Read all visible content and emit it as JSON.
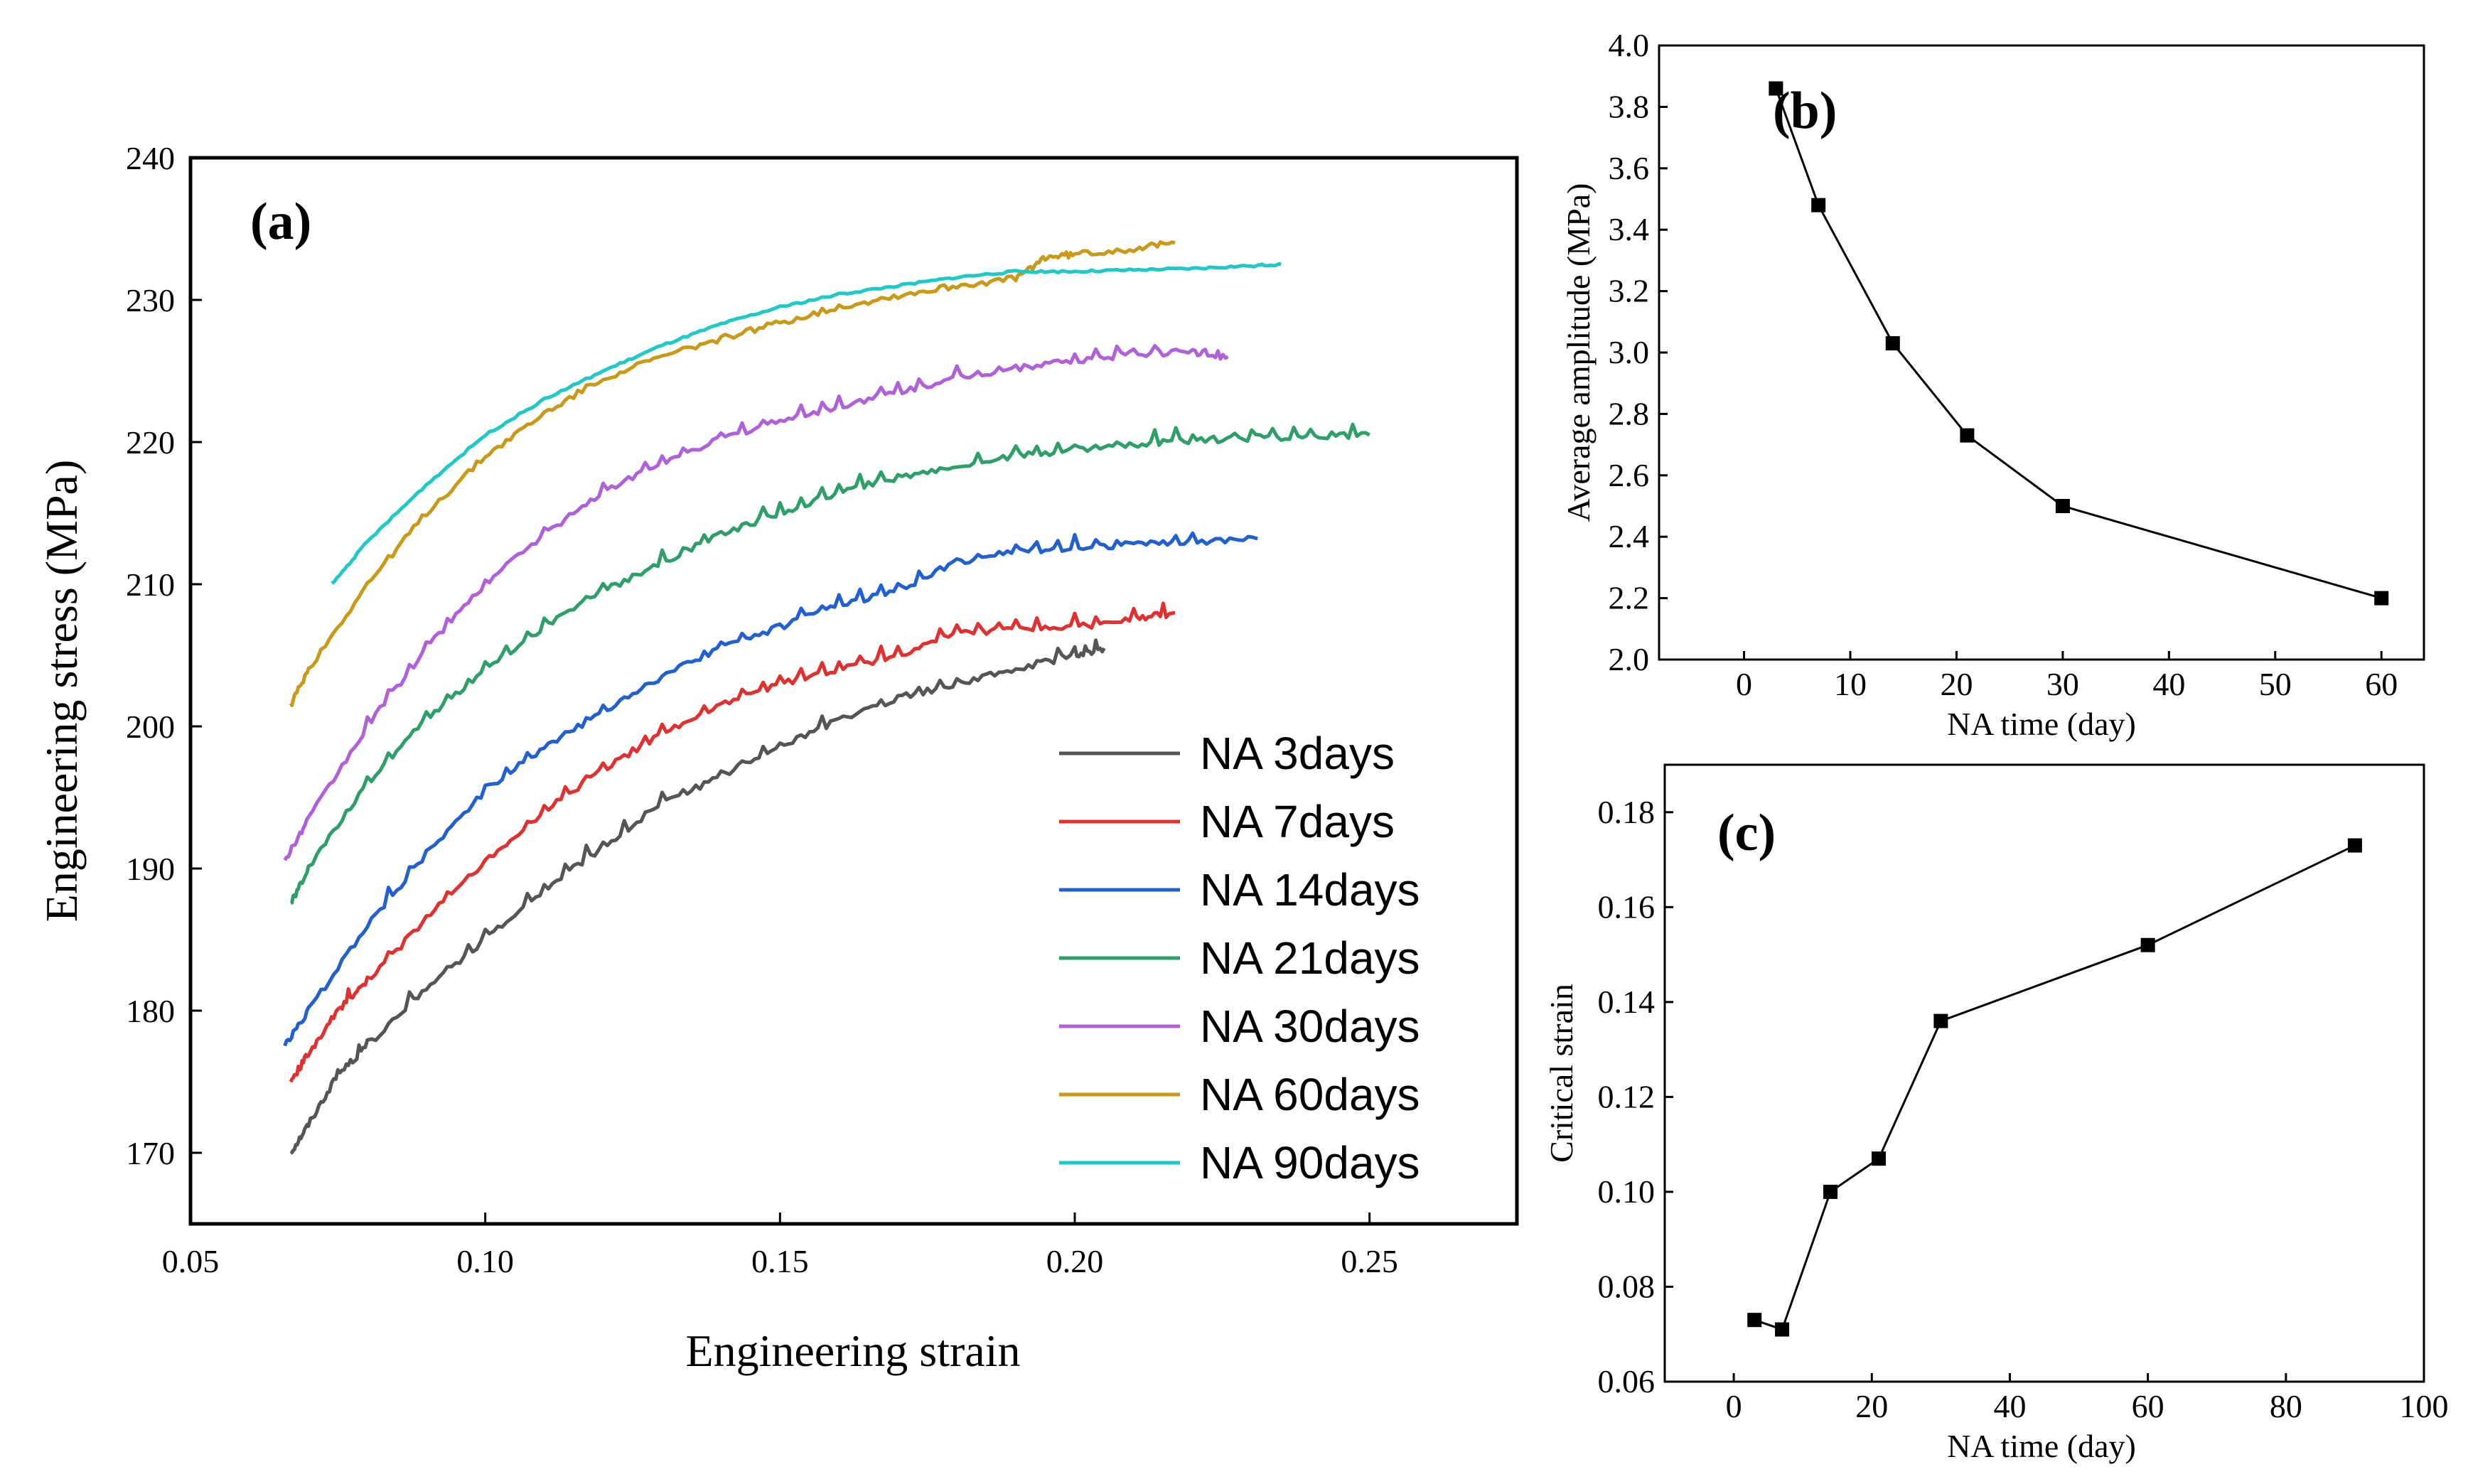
{
  "chart_data": [
    {
      "panel": "(a)",
      "type": "line",
      "xlabel": "Engineering strain",
      "ylabel": "Engineering stress (MPa)",
      "xlim": [
        0.05,
        0.275
      ],
      "ylim": [
        165,
        240
      ],
      "xticks": [
        "0.05",
        "0.10",
        "0.15",
        "0.20",
        "0.25"
      ],
      "yticks": [
        "170",
        "180",
        "190",
        "200",
        "210",
        "220",
        "230",
        "240"
      ],
      "legend_position": "bottom-right",
      "series": [
        {
          "name": "NA 3days",
          "color": "#555555",
          "x": [
            0.067,
            0.07,
            0.075,
            0.08,
            0.09,
            0.1,
            0.11,
            0.12,
            0.13,
            0.14,
            0.15,
            0.16,
            0.17,
            0.18,
            0.19,
            0.2,
            0.205
          ],
          "y": [
            170,
            172,
            175.5,
            177.5,
            181.5,
            185,
            188.5,
            191.5,
            194.5,
            196.5,
            198.5,
            200.5,
            202,
            203,
            204,
            205,
            205.5
          ]
        },
        {
          "name": "NA 7days",
          "color": "#e03030",
          "x": [
            0.067,
            0.07,
            0.075,
            0.08,
            0.09,
            0.1,
            0.11,
            0.12,
            0.13,
            0.14,
            0.15,
            0.16,
            0.17,
            0.18,
            0.19,
            0.2,
            0.21,
            0.217
          ],
          "y": [
            175,
            177,
            180,
            182,
            186.5,
            190.5,
            194,
            197,
            199.5,
            201.5,
            203,
            204,
            205,
            206.5,
            206.8,
            207,
            207.5,
            208
          ]
        },
        {
          "name": "NA 14days",
          "color": "#2060d0",
          "x": [
            0.066,
            0.07,
            0.08,
            0.09,
            0.1,
            0.11,
            0.12,
            0.13,
            0.14,
            0.15,
            0.16,
            0.17,
            0.18,
            0.19,
            0.2,
            0.21,
            0.22,
            0.231
          ],
          "y": [
            177.5,
            180,
            186,
            191,
            195.5,
            198.5,
            201,
            203.5,
            205.5,
            207,
            208.5,
            209.5,
            211.5,
            212.3,
            212.6,
            212.8,
            213,
            213.2
          ]
        },
        {
          "name": "NA 21days",
          "color": "#2e9e6a",
          "x": [
            0.067,
            0.07,
            0.08,
            0.09,
            0.1,
            0.11,
            0.12,
            0.13,
            0.14,
            0.15,
            0.16,
            0.17,
            0.18,
            0.19,
            0.2,
            0.21,
            0.22,
            0.23,
            0.24,
            0.25
          ],
          "y": [
            187.5,
            190,
            196,
            200.5,
            204,
            207,
            209.5,
            211.5,
            213.5,
            215,
            216.5,
            217.5,
            218.3,
            219,
            219.5,
            219.8,
            220.1,
            220.3,
            220.4,
            220.5
          ]
        },
        {
          "name": "NA 30days",
          "color": "#b060d8",
          "x": [
            0.066,
            0.07,
            0.08,
            0.09,
            0.1,
            0.11,
            0.12,
            0.13,
            0.14,
            0.15,
            0.16,
            0.17,
            0.18,
            0.19,
            0.2,
            0.21,
            0.22,
            0.226
          ],
          "y": [
            190.5,
            193.5,
            200,
            205.5,
            210,
            213.5,
            216.5,
            218.5,
            220.2,
            221.5,
            222.5,
            223.5,
            224.5,
            225.2,
            225.7,
            226.2,
            226.3,
            226
          ]
        },
        {
          "name": "NA 60days",
          "color": "#c89a18",
          "x": [
            0.067,
            0.07,
            0.08,
            0.09,
            0.1,
            0.11,
            0.12,
            0.13,
            0.14,
            0.15,
            0.16,
            0.17,
            0.18,
            0.19,
            0.195,
            0.2,
            0.21,
            0.217
          ],
          "y": [
            201.5,
            204,
            210,
            215,
            219,
            222,
            224.5,
            226,
            227.3,
            228.4,
            229.5,
            230.3,
            231,
            231.5,
            233,
            233.2,
            233.6,
            234
          ]
        },
        {
          "name": "NA 90days",
          "color": "#20c8c8",
          "x": [
            0.074,
            0.08,
            0.09,
            0.1,
            0.11,
            0.12,
            0.13,
            0.14,
            0.15,
            0.16,
            0.17,
            0.18,
            0.19,
            0.2,
            0.21,
            0.22,
            0.23,
            0.235
          ],
          "y": [
            210,
            213,
            217,
            220.5,
            223,
            225,
            226.8,
            228.3,
            229.5,
            230.4,
            231,
            231.6,
            232,
            232,
            232.1,
            232.2,
            232.4,
            232.5
          ]
        }
      ]
    },
    {
      "panel": "(b)",
      "type": "line",
      "xlabel": "NA time (day)",
      "ylabel": "Average amplitude (MPa)",
      "xlim": [
        -8,
        64
      ],
      "ylim": [
        2.0,
        4.0
      ],
      "xticks": [
        "0",
        "10",
        "20",
        "30",
        "40",
        "50",
        "60"
      ],
      "yticks": [
        "2.0",
        "2.2",
        "2.4",
        "2.6",
        "2.8",
        "3.0",
        "3.2",
        "3.4",
        "3.6",
        "3.8",
        "4.0"
      ],
      "x": [
        3,
        7,
        14,
        21,
        30,
        60
      ],
      "y": [
        3.86,
        3.48,
        3.03,
        2.73,
        2.5,
        2.2
      ]
    },
    {
      "panel": "(c)",
      "type": "line",
      "xlabel": "NA time (day)",
      "ylabel": "Critical strain",
      "xlim": [
        -10,
        100
      ],
      "ylim": [
        0.06,
        0.19
      ],
      "xticks": [
        "0",
        "20",
        "40",
        "60",
        "80",
        "100"
      ],
      "yticks": [
        "0.06",
        "0.08",
        "0.10",
        "0.12",
        "0.14",
        "0.16",
        "0.18"
      ],
      "x": [
        3,
        7,
        14,
        21,
        30,
        60,
        90
      ],
      "y": [
        0.073,
        0.071,
        0.1,
        0.107,
        0.136,
        0.152,
        0.173
      ]
    }
  ]
}
